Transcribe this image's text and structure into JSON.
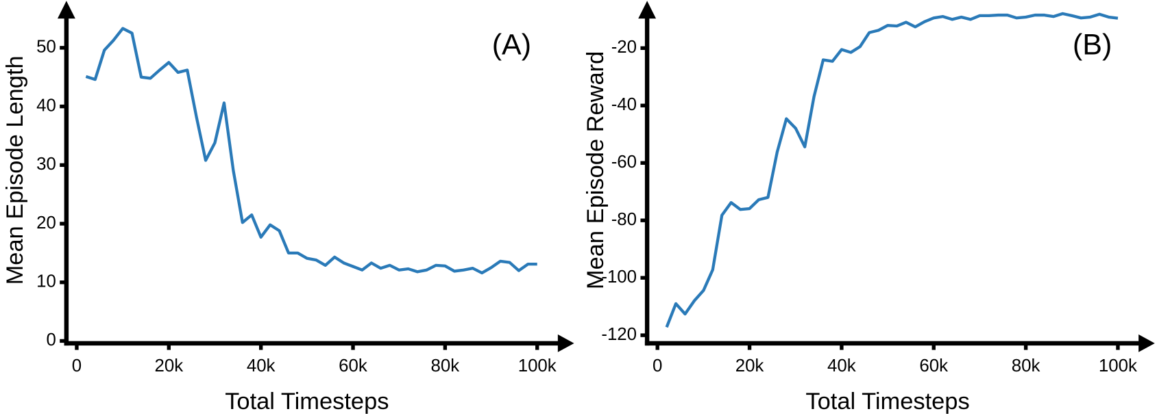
{
  "chart_data": [
    {
      "type": "line",
      "x_label": "Total Timesteps",
      "y_label": "Mean Episode Length",
      "annotation": "(A)",
      "color": "#2a7ab8",
      "x": [
        2000,
        4000,
        6000,
        8000,
        10000,
        12000,
        14000,
        16000,
        18000,
        20000,
        22000,
        24000,
        26000,
        28000,
        30000,
        32000,
        34000,
        36000,
        38000,
        40000,
        42000,
        44000,
        46000,
        48000,
        50000,
        52000,
        54000,
        56000,
        58000,
        60000,
        62000,
        64000,
        66000,
        68000,
        70000,
        72000,
        74000,
        76000,
        78000,
        80000,
        82000,
        84000,
        86000,
        88000,
        90000,
        92000,
        94000,
        96000,
        98000,
        100000
      ],
      "values": [
        45.1,
        44.6,
        49.6,
        51.3,
        53.3,
        52.5,
        45,
        44.8,
        46.2,
        47.5,
        45.8,
        46.2,
        38.2,
        30.8,
        33.8,
        40.6,
        29.1,
        20.2,
        21.5,
        17.7,
        19.8,
        18.8,
        15,
        15,
        14.1,
        13.8,
        12.9,
        14.3,
        13.3,
        12.7,
        12.1,
        13.3,
        12.4,
        12.9,
        12.1,
        12.3,
        11.8,
        12.1,
        12.9,
        12.8,
        11.9,
        12.1,
        12.4,
        11.6,
        12.5,
        13.6,
        13.4,
        12,
        13.1,
        13.1
      ],
      "xlim": [
        0,
        100000
      ],
      "xticks": [
        0,
        {
          "value": 20000,
          "label": "20k"
        },
        {
          "value": 40000,
          "label": "40k"
        },
        {
          "value": 60000,
          "label": "60k"
        },
        {
          "value": 80000,
          "label": "80k"
        },
        {
          "value": 100000,
          "label": "100k"
        }
      ],
      "ylim": [
        -0.4,
        57
      ],
      "yticks": [
        0,
        10,
        20,
        30,
        40,
        50
      ]
    },
    {
      "type": "line",
      "x_label": "Total Timesteps",
      "y_label": "Mean Episode Reward",
      "annotation": "(B)",
      "color": "#2a7ab8",
      "x": [
        2000,
        4000,
        6000,
        8000,
        10000,
        12000,
        14000,
        16000,
        18000,
        20000,
        22000,
        24000,
        26000,
        28000,
        30000,
        32000,
        34000,
        36000,
        38000,
        40000,
        42000,
        44000,
        46000,
        48000,
        50000,
        52000,
        54000,
        56000,
        58000,
        60000,
        62000,
        64000,
        66000,
        68000,
        70000,
        72000,
        74000,
        76000,
        78000,
        80000,
        82000,
        84000,
        86000,
        88000,
        90000,
        92000,
        94000,
        96000,
        98000,
        100000
      ],
      "values": [
        -117.2,
        -109,
        -112.6,
        -108,
        -104.4,
        -97.2,
        -78.2,
        -73.8,
        -76.2,
        -75.9,
        -72.8,
        -72,
        -56.2,
        -44.6,
        -47.9,
        -54.4,
        -36.9,
        -24.1,
        -24.6,
        -20.5,
        -21.5,
        -19.5,
        -14.6,
        -13.8,
        -12.1,
        -12.3,
        -11,
        -12.6,
        -10.8,
        -9.5,
        -9,
        -10,
        -9.2,
        -10,
        -8.7,
        -8.7,
        -8.5,
        -8.5,
        -9.5,
        -9.2,
        -8.5,
        -8.5,
        -9,
        -8,
        -8.7,
        -9.5,
        -9.2,
        -8.2,
        -9.2,
        -9.6
      ],
      "xlim": [
        0,
        100000
      ],
      "xticks": [
        0,
        {
          "value": 20000,
          "label": "20k"
        },
        {
          "value": 40000,
          "label": "40k"
        },
        {
          "value": 60000,
          "label": "60k"
        },
        {
          "value": 80000,
          "label": "80k"
        },
        {
          "value": 100000,
          "label": "100k"
        }
      ],
      "ylim": [
        -122.8,
        -5.6
      ],
      "yticks": [
        -120,
        -100,
        -80,
        -60,
        -40,
        -20
      ]
    }
  ]
}
